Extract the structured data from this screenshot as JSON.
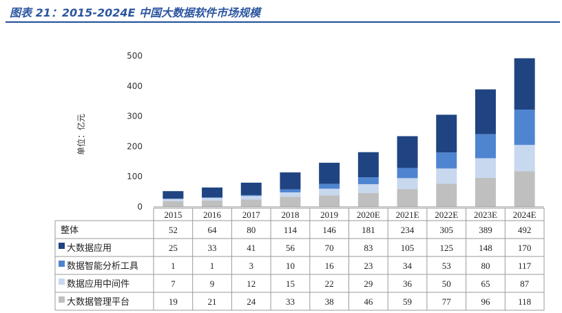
{
  "figure_title": "图表 21：2015-2024E 中国大数据软件市场规模",
  "chart_data": {
    "type": "bar",
    "stacked": true,
    "ylabel": "单位：亿元",
    "ylim": [
      0,
      500
    ],
    "yticks": [
      0,
      100,
      200,
      300,
      400,
      500
    ],
    "categories": [
      "2015",
      "2016",
      "2017",
      "2018",
      "2019",
      "2020E",
      "2021E",
      "2022E",
      "2023E",
      "2024E"
    ],
    "table_header": "整体",
    "totals": [
      52,
      64,
      80,
      114,
      146,
      181,
      234,
      305,
      389,
      492
    ],
    "series": [
      {
        "name": "大数据应用",
        "color": "#1f4481",
        "values": [
          25,
          33,
          41,
          56,
          70,
          83,
          105,
          125,
          148,
          170
        ]
      },
      {
        "name": "数据智能分析工具",
        "color": "#4f84d0",
        "values": [
          1,
          1,
          3,
          10,
          16,
          23,
          34,
          53,
          80,
          117
        ]
      },
      {
        "name": "数据应用中间件",
        "color": "#c7d8ef",
        "values": [
          7,
          9,
          12,
          15,
          22,
          29,
          36,
          50,
          65,
          87
        ]
      },
      {
        "name": "大数据管理平台",
        "color": "#bfbfbf",
        "values": [
          19,
          21,
          24,
          33,
          38,
          46,
          59,
          77,
          96,
          118
        ]
      }
    ],
    "grid": false,
    "legend": "table-left"
  }
}
